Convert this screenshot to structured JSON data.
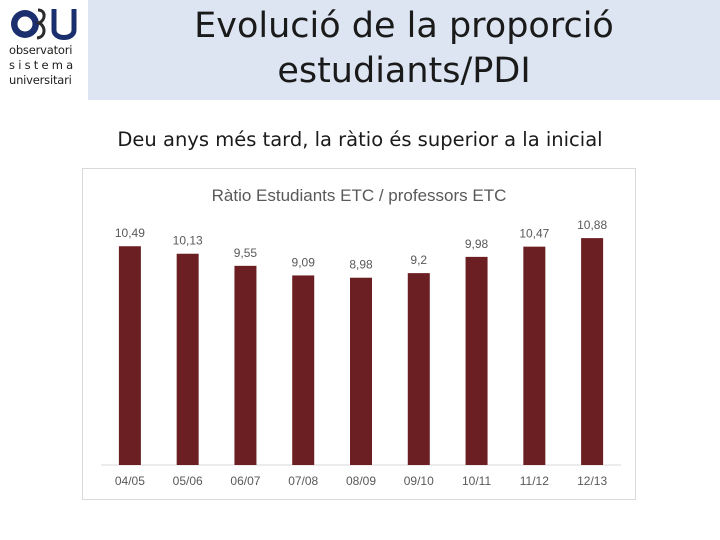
{
  "slide": {
    "title_line1": "Evolució de la proporció",
    "title_line2": "estudiants/PDI",
    "subtitle": "Deu anys més tard, la ràtio és superior a la inicial"
  },
  "logo": {
    "line1": "observatori",
    "line2": "sistema",
    "line3": "universitari",
    "mark": "OSU"
  },
  "colors": {
    "header_bg": "#dce5f1",
    "bar": "#6b1f23",
    "chart_title": "#595959",
    "label": "#595959",
    "logo_blue": "#1b2f6e"
  },
  "chart_data": {
    "type": "bar",
    "title": "Ràtio Estudiants ETC / professors ETC",
    "categories": [
      "04/05",
      "05/06",
      "06/07",
      "07/08",
      "08/09",
      "09/10",
      "10/11",
      "11/12",
      "12/13"
    ],
    "values": [
      10.49,
      10.13,
      9.55,
      9.09,
      8.98,
      9.2,
      9.98,
      10.47,
      10.88
    ],
    "data_labels": [
      "10,49",
      "10,13",
      "9,55",
      "9,09",
      "8,98",
      "9,2",
      "9,98",
      "10,47",
      "10,88"
    ],
    "ylim": [
      0,
      11.7
    ],
    "grid": false,
    "legend": "none"
  }
}
